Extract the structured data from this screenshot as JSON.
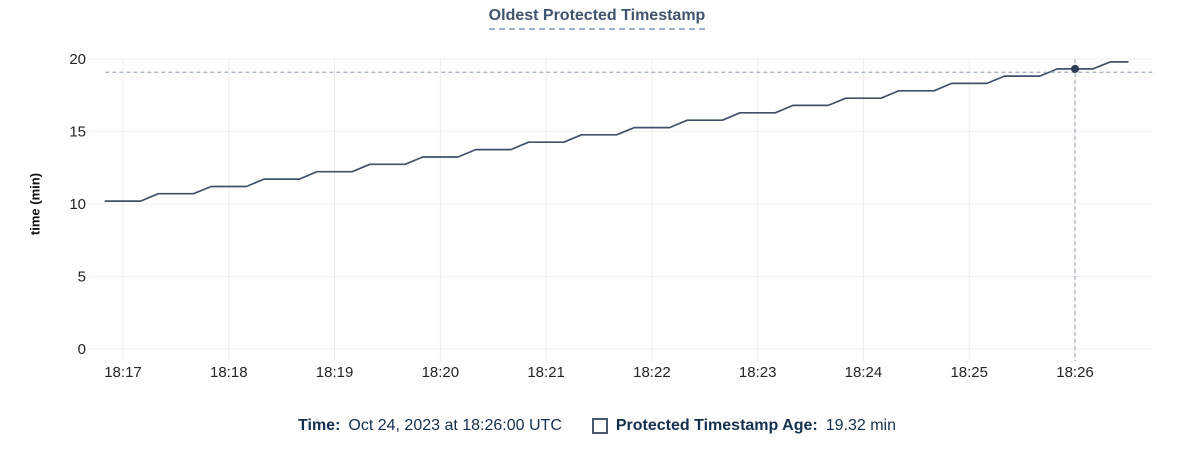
{
  "title": "Oldest Protected Timestamp",
  "colors": {
    "line": "#41506b",
    "dot": "#2e3c54",
    "grid_h": "#f0f0f0",
    "grid_v": "#ececec",
    "crosshair": "#9cadc0",
    "title": "#3f546e",
    "title_underline": "#9db1c8",
    "tick_text": "#242424",
    "legend_text": "#14304f",
    "checkbox_border": "#475872"
  },
  "legend": {
    "time_label": "Time:",
    "time_value": "Oct 24, 2023 at 18:26:00 UTC",
    "series_label": "Protected Timestamp Age:",
    "series_value": "19.32 min"
  },
  "chart_data": {
    "type": "line",
    "title": "Oldest Protected Timestamp",
    "xlabel": "",
    "ylabel": "time (min)",
    "ylim": [
      0,
      20
    ],
    "y_ticks": [
      0,
      5,
      10,
      15,
      20
    ],
    "x_ticks": [
      "18:17",
      "18:18",
      "18:19",
      "18:20",
      "18:21",
      "18:22",
      "18:23",
      "18:24",
      "18:25",
      "18:26"
    ],
    "grid": true,
    "legend_position": "bottom",
    "hover_point": {
      "time": "18:26:00",
      "value": 19.32,
      "date": "Oct 24, 2023",
      "unit": "min"
    },
    "series": [
      {
        "name": "Protected Timestamp Age",
        "points": [
          [
            "18:16:50",
            10.2
          ],
          [
            "18:17:00",
            10.2
          ],
          [
            "18:17:10",
            10.2
          ],
          [
            "18:17:20",
            10.71
          ],
          [
            "18:17:30",
            10.71
          ],
          [
            "18:17:40",
            10.71
          ],
          [
            "18:17:50",
            11.21
          ],
          [
            "18:18:00",
            11.21
          ],
          [
            "18:18:10",
            11.21
          ],
          [
            "18:18:20",
            11.72
          ],
          [
            "18:18:30",
            11.72
          ],
          [
            "18:18:40",
            11.72
          ],
          [
            "18:18:50",
            12.23
          ],
          [
            "18:19:00",
            12.23
          ],
          [
            "18:19:10",
            12.23
          ],
          [
            "18:19:20",
            12.74
          ],
          [
            "18:19:30",
            12.74
          ],
          [
            "18:19:40",
            12.74
          ],
          [
            "18:19:50",
            13.24
          ],
          [
            "18:20:00",
            13.24
          ],
          [
            "18:20:10",
            13.24
          ],
          [
            "18:20:20",
            13.75
          ],
          [
            "18:20:30",
            13.75
          ],
          [
            "18:20:40",
            13.75
          ],
          [
            "18:20:50",
            14.26
          ],
          [
            "18:21:00",
            14.26
          ],
          [
            "18:21:10",
            14.26
          ],
          [
            "18:21:20",
            14.77
          ],
          [
            "18:21:30",
            14.77
          ],
          [
            "18:21:40",
            14.77
          ],
          [
            "18:21:50",
            15.27
          ],
          [
            "18:22:00",
            15.27
          ],
          [
            "18:22:10",
            15.27
          ],
          [
            "18:22:20",
            15.78
          ],
          [
            "18:22:30",
            15.78
          ],
          [
            "18:22:40",
            15.78
          ],
          [
            "18:22:50",
            16.29
          ],
          [
            "18:23:00",
            16.29
          ],
          [
            "18:23:10",
            16.29
          ],
          [
            "18:23:20",
            16.8
          ],
          [
            "18:23:30",
            16.8
          ],
          [
            "18:23:40",
            16.8
          ],
          [
            "18:23:50",
            17.3
          ],
          [
            "18:24:00",
            17.3
          ],
          [
            "18:24:10",
            17.3
          ],
          [
            "18:24:20",
            17.81
          ],
          [
            "18:24:30",
            17.81
          ],
          [
            "18:24:40",
            17.81
          ],
          [
            "18:24:50",
            18.32
          ],
          [
            "18:25:00",
            18.32
          ],
          [
            "18:25:10",
            18.32
          ],
          [
            "18:25:20",
            18.82
          ],
          [
            "18:25:30",
            18.82
          ],
          [
            "18:25:40",
            18.82
          ],
          [
            "18:25:50",
            19.32
          ],
          [
            "18:26:00",
            19.32
          ],
          [
            "18:26:10",
            19.32
          ],
          [
            "18:26:20",
            19.8
          ],
          [
            "18:26:30",
            19.8
          ]
        ]
      }
    ]
  }
}
